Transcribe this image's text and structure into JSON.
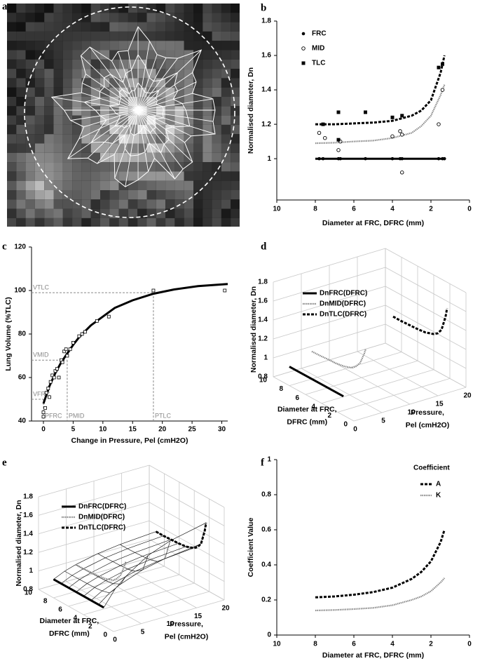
{
  "chart_data": [
    {
      "type": "image",
      "label": "a"
    },
    {
      "type": "scatter",
      "label": "b",
      "ylabel": "Normalised diameter, Dn",
      "xlabel": "Diameter at FRC, DFRC (mm)",
      "xlim": [
        10,
        0
      ],
      "ylim": [
        0.76,
        1.8
      ],
      "xticks": [
        10,
        8,
        6,
        4,
        2,
        0
      ],
      "yticks": [
        1,
        1.2,
        1.4,
        1.6,
        1.8
      ],
      "legend": "upper left",
      "series": [
        {
          "name": "FRC",
          "marker": "filled-circle",
          "color": "#000000",
          "x": [
            7.8,
            7.6,
            6.8,
            6.7,
            5.4,
            4,
            3.6,
            3.5,
            1.6,
            1.4,
            1.3
          ],
          "values": [
            1,
            1,
            1,
            1,
            1,
            1,
            1,
            1,
            1,
            1,
            1
          ]
        },
        {
          "name": "MID",
          "marker": "open-circle",
          "color": "#000000",
          "x": [
            7.8,
            7.5,
            6.8,
            6.7,
            4,
            3.6,
            3.5,
            3.5,
            1.6,
            1.4
          ],
          "values": [
            1.15,
            1.12,
            1.05,
            1.1,
            1.13,
            1.16,
            1.14,
            0.92,
            1.2,
            1.4
          ]
        },
        {
          "name": "TLC",
          "marker": "filled-square",
          "color": "#000000",
          "x": [
            7.6,
            6.8,
            6.8,
            5.4,
            4,
            3.5,
            1.6,
            1.4
          ],
          "values": [
            1.2,
            1.27,
            1.11,
            1.27,
            1.24,
            1.25,
            1.53,
            1.55
          ]
        }
      ],
      "fits": [
        {
          "style": "solid",
          "x": [
            8,
            1.3
          ],
          "values": [
            1,
            1
          ]
        },
        {
          "style": "dotted",
          "x": [
            8,
            7,
            6,
            5,
            4,
            3,
            2.5,
            2,
            1.5,
            1.3
          ],
          "values": [
            1.09,
            1.093,
            1.1,
            1.105,
            1.12,
            1.15,
            1.19,
            1.25,
            1.37,
            1.43
          ]
        },
        {
          "style": "dashed",
          "x": [
            8,
            7,
            6,
            5,
            4,
            3,
            2.5,
            2,
            1.5,
            1.3
          ],
          "values": [
            1.2,
            1.2,
            1.205,
            1.21,
            1.22,
            1.25,
            1.28,
            1.34,
            1.5,
            1.6
          ]
        }
      ]
    },
    {
      "type": "scatter",
      "label": "c",
      "ylabel": "Lung Volume (%TLC)",
      "xlabel": "Change in Pressure, Pel (cmH2O)",
      "xlim": [
        -2,
        31
      ],
      "ylim": [
        40,
        120
      ],
      "xticks": [
        0,
        5,
        10,
        15,
        20,
        25,
        30
      ],
      "yticks": [
        40,
        60,
        80,
        100,
        120
      ],
      "series": [
        {
          "marker": "open-square",
          "color": "#000000",
          "x": [
            0,
            0,
            0.3,
            0.5,
            0.8,
            1,
            1.2,
            1.5,
            1.8,
            2,
            2.3,
            2.6,
            3,
            3.2,
            3.5,
            3.8,
            4,
            4.5,
            5,
            6,
            6.5,
            7,
            9,
            11,
            18.5,
            30.5
          ],
          "values": [
            42,
            44,
            46,
            53,
            55,
            51,
            58,
            61,
            60,
            63,
            64,
            60,
            68,
            67,
            72,
            73,
            70,
            73,
            76,
            79,
            80,
            81,
            86,
            88,
            100,
            100
          ]
        }
      ],
      "fits": [
        {
          "style": "solid",
          "x": [
            0,
            1,
            2,
            3,
            4,
            5,
            6,
            8,
            10,
            12,
            15,
            18.5,
            22,
            26,
            31
          ],
          "values": [
            48,
            56,
            62,
            67,
            71,
            75,
            78.5,
            84,
            88,
            92,
            95.5,
            98.5,
            100.5,
            102,
            103
          ]
        }
      ],
      "references": [
        {
          "x": 0,
          "y": 50,
          "xlabel": "PFRC",
          "ylabel": "VFRC"
        },
        {
          "x": 4,
          "y": 68,
          "xlabel": "PMID",
          "ylabel": "VMID"
        },
        {
          "x": 18.5,
          "y": 99,
          "xlabel": "PTLC",
          "ylabel": "VTLC"
        }
      ]
    },
    {
      "type": "line3d",
      "label": "d",
      "zlabel": "Normalised diameter, Dn",
      "xlabel": [
        "Diameter at FRC,",
        "DFRC (mm)"
      ],
      "ylabel": [
        "Pressure,",
        "Pel (cmH2O)"
      ],
      "xlim": [
        0,
        10
      ],
      "ylim": [
        0,
        20
      ],
      "zlim": [
        0.8,
        1.8
      ],
      "xticks": [
        0,
        2,
        4,
        6,
        8,
        10
      ],
      "yticks": [
        0,
        5,
        10,
        15,
        20
      ],
      "zticks": [
        0.8,
        1,
        1.2,
        1.4,
        1.6,
        1.8
      ],
      "series": [
        {
          "name": "DnFRC(DFRC)",
          "style": "solid",
          "x": [
            8,
            1.3
          ],
          "y": [
            0,
            0
          ],
          "values": [
            1,
            1
          ]
        },
        {
          "name": "DnMID(DFRC)",
          "style": "dotted",
          "x": [
            8,
            7,
            6,
            5,
            4,
            3,
            2.5,
            2,
            1.5,
            1.3
          ],
          "y": [
            4,
            4,
            4,
            4,
            4,
            4,
            4,
            4,
            4,
            4
          ],
          "values": [
            1.09,
            1.093,
            1.1,
            1.105,
            1.12,
            1.15,
            1.19,
            1.25,
            1.37,
            1.43
          ]
        },
        {
          "name": "DnTLC(DFRC)",
          "style": "dashed",
          "x": [
            8,
            7,
            6,
            5,
            4,
            3,
            2.5,
            2,
            1.5,
            1.3
          ],
          "y": [
            18.5,
            18.5,
            18.5,
            18.5,
            18.5,
            18.5,
            18.5,
            18.5,
            18.5,
            18.5
          ],
          "values": [
            1.2,
            1.2,
            1.205,
            1.21,
            1.22,
            1.25,
            1.28,
            1.34,
            1.5,
            1.6
          ]
        }
      ]
    },
    {
      "type": "line3d",
      "label": "e",
      "zlabel": "Normalised diameter, Dn",
      "xlabel": [
        "Diameter at FRC,",
        "DFRC (mm)"
      ],
      "ylabel": [
        "Pressure,",
        "Pel (cmH2O)"
      ],
      "xlim": [
        0,
        10
      ],
      "ylim": [
        0,
        20
      ],
      "zlim": [
        0.8,
        1.8
      ],
      "xticks": [
        0,
        2,
        4,
        6,
        8,
        10
      ],
      "yticks": [
        0,
        5,
        10,
        15,
        20
      ],
      "zticks": [
        0.8,
        1,
        1.2,
        1.4,
        1.6,
        1.8
      ],
      "series": [
        {
          "name": "DnFRC(DFRC)",
          "style": "solid",
          "x": [
            8,
            1.3
          ],
          "y": [
            0,
            0
          ],
          "values": [
            1,
            1
          ]
        },
        {
          "name": "DnMID(DFRC)",
          "style": "dotted",
          "x": [
            8,
            7,
            6,
            5,
            4,
            3,
            2.5,
            2,
            1.5,
            1.3
          ],
          "y": [
            4,
            4,
            4,
            4,
            4,
            4,
            4,
            4,
            4,
            4
          ],
          "values": [
            1.09,
            1.093,
            1.1,
            1.105,
            1.12,
            1.15,
            1.19,
            1.25,
            1.37,
            1.43
          ]
        },
        {
          "name": "DnTLC(DFRC)",
          "style": "dashed",
          "x": [
            8,
            7,
            6,
            5,
            4,
            3,
            2.5,
            2,
            1.5,
            1.3
          ],
          "y": [
            18.5,
            18.5,
            18.5,
            18.5,
            18.5,
            18.5,
            18.5,
            18.5,
            18.5,
            18.5
          ],
          "values": [
            1.2,
            1.2,
            1.205,
            1.21,
            1.22,
            1.25,
            1.28,
            1.34,
            1.5,
            1.6
          ]
        }
      ],
      "surface": {
        "x": [
          8,
          7,
          6,
          5,
          4,
          3,
          2,
          1.3
        ],
        "y": [
          0,
          2,
          4,
          8,
          12,
          18.5
        ],
        "values": [
          [
            1,
            1.054,
            1.09,
            1.142,
            1.172,
            1.2
          ],
          [
            1,
            1.054,
            1.09,
            1.142,
            1.172,
            1.2
          ],
          [
            1,
            1.055,
            1.092,
            1.146,
            1.176,
            1.205
          ],
          [
            1,
            1.057,
            1.095,
            1.149,
            1.181,
            1.21
          ],
          [
            1,
            1.059,
            1.099,
            1.156,
            1.189,
            1.22
          ],
          [
            1,
            1.068,
            1.113,
            1.178,
            1.215,
            1.25
          ],
          [
            1,
            1.092,
            1.153,
            1.241,
            1.292,
            1.34
          ],
          [
            1,
            1.162,
            1.27,
            1.426,
            1.516,
            1.6
          ]
        ]
      }
    },
    {
      "type": "line",
      "label": "f",
      "ylabel": "Coefficient Value",
      "xlabel": "Diameter at FRC, DFRC (mm)",
      "legend_title": "Coefficient",
      "xlim": [
        10,
        0
      ],
      "ylim": [
        0,
        1
      ],
      "xticks": [
        10,
        8,
        6,
        4,
        2,
        0
      ],
      "yticks": [
        0,
        0.2,
        0.4,
        0.6,
        0.8,
        1
      ],
      "series": [
        {
          "name": "A",
          "style": "dashed",
          "x": [
            8,
            7,
            6,
            5,
            4,
            3,
            2.5,
            2,
            1.5,
            1.3
          ],
          "values": [
            0.215,
            0.22,
            0.23,
            0.245,
            0.27,
            0.32,
            0.36,
            0.42,
            0.53,
            0.6
          ]
        },
        {
          "name": "K",
          "style": "dotted",
          "x": [
            8,
            7,
            6,
            5,
            4,
            3,
            2.5,
            2,
            1.5,
            1.3
          ],
          "values": [
            0.14,
            0.143,
            0.148,
            0.155,
            0.17,
            0.2,
            0.22,
            0.25,
            0.3,
            0.325
          ]
        }
      ]
    }
  ]
}
